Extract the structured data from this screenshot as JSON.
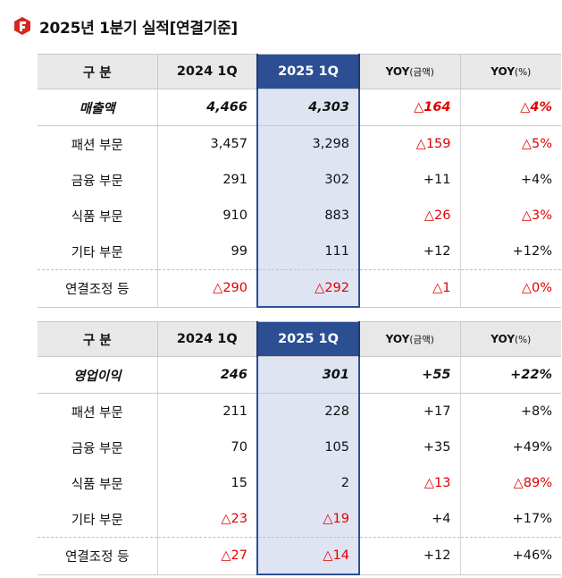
{
  "title": "2025년 1분기 실적[연결기준]",
  "colors": {
    "accent": "#2c4f93",
    "highlight": "#dfe4f3",
    "negative": "#e00000"
  },
  "header": {
    "category": "구 분",
    "col2024": "2024 1Q",
    "col2025": "2025 1Q",
    "yoy_amt_main": "YOY",
    "yoy_amt_sub": "(금액)",
    "yoy_pct_main": "YOY",
    "yoy_pct_sub": "(%)"
  },
  "revenue": {
    "rows": [
      {
        "label": "매출액",
        "v2024": "4,466",
        "v2025": "4,303",
        "yoy_amt": "△164",
        "yoy_pct": "△4%",
        "neg_amt": true,
        "neg_pct": true
      },
      {
        "label": "패션 부문",
        "v2024": "3,457",
        "v2025": "3,298",
        "yoy_amt": "△159",
        "yoy_pct": "△5%",
        "neg_amt": true,
        "neg_pct": true
      },
      {
        "label": "금융 부문",
        "v2024": "291",
        "v2025": "302",
        "yoy_amt": "+11",
        "yoy_pct": "+4%"
      },
      {
        "label": "식품 부문",
        "v2024": "910",
        "v2025": "883",
        "yoy_amt": "△26",
        "yoy_pct": "△3%",
        "neg_amt": true,
        "neg_pct": true
      },
      {
        "label": "기타 부문",
        "v2024": "99",
        "v2025": "111",
        "yoy_amt": "+12",
        "yoy_pct": "+12%"
      },
      {
        "label": "연결조정 등",
        "v2024": "△290",
        "v2025": "△292",
        "yoy_amt": "△1",
        "yoy_pct": "△0%",
        "neg_2024": true,
        "neg_2025": true,
        "neg_amt": true,
        "neg_pct": true
      }
    ]
  },
  "operating_profit": {
    "rows": [
      {
        "label": "영업이익",
        "v2024": "246",
        "v2025": "301",
        "yoy_amt": "+55",
        "yoy_pct": "+22%"
      },
      {
        "label": "패션 부문",
        "v2024": "211",
        "v2025": "228",
        "yoy_amt": "+17",
        "yoy_pct": "+8%"
      },
      {
        "label": "금융 부문",
        "v2024": "70",
        "v2025": "105",
        "yoy_amt": "+35",
        "yoy_pct": "+49%"
      },
      {
        "label": "식품 부문",
        "v2024": "15",
        "v2025": "2",
        "yoy_amt": "△13",
        "yoy_pct": "△89%",
        "neg_amt": true,
        "neg_pct": true
      },
      {
        "label": "기타 부문",
        "v2024": "△23",
        "v2025": "△19",
        "yoy_amt": "+4",
        "yoy_pct": "+17%",
        "neg_2024": true,
        "neg_2025": true
      },
      {
        "label": "연결조정 등",
        "v2024": "△27",
        "v2025": "△14",
        "yoy_amt": "+12",
        "yoy_pct": "+46%",
        "neg_2024": true,
        "neg_2025": true
      }
    ]
  }
}
